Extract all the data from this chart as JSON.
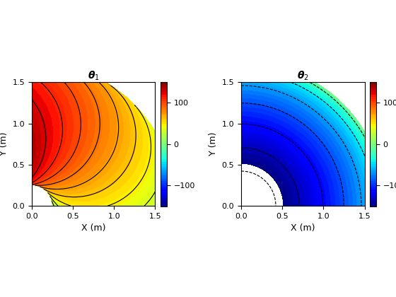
{
  "L1": 1.0,
  "L2": 0.75,
  "x_range": [
    0,
    1.5
  ],
  "y_range": [
    0,
    1.5
  ],
  "colorbar_ticks": [
    -100,
    0,
    100
  ],
  "title1": "$\\boldsymbol{\\theta}_1$",
  "title2": "$\\boldsymbol{\\theta}_2$",
  "xlabel": "X (m)",
  "ylabel": "Y (m)",
  "figsize": [
    5.6,
    4.2
  ],
  "dpi": 100,
  "vmin": -150,
  "vmax": 150,
  "n_fill_levels": 60,
  "n_contour_lines1": 11,
  "n_contour_lines2": 9,
  "background": "#ffffff"
}
